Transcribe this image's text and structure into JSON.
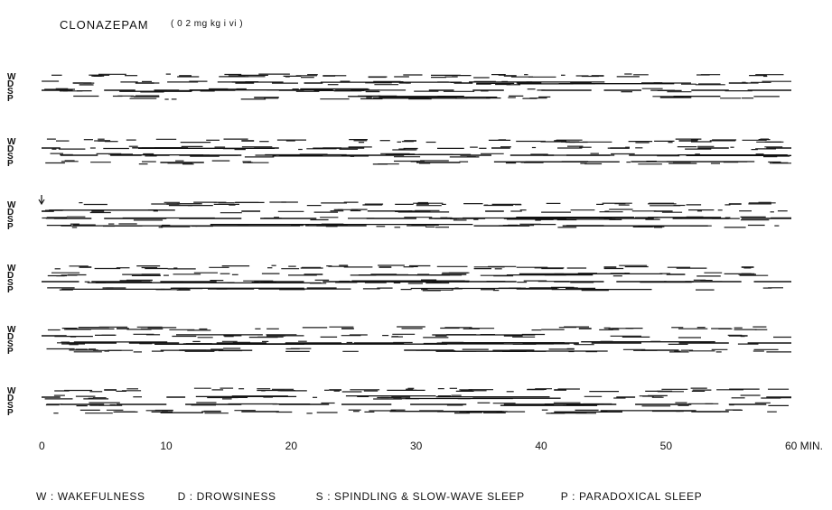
{
  "title": {
    "drug": "CLONAZEPAM",
    "dose": "( 0 2 mg kg i vi )"
  },
  "legend": {
    "w": "W : WAKEFULNESS",
    "d": "D : DROWSINESS",
    "s": "S : SPINDLING & SLOW-WAVE SLEEP",
    "p": "P : PARADOXICAL SLEEP"
  },
  "chart_data": {
    "type": "hypnogram",
    "xlabel": "MIN.",
    "x_range": [
      0,
      60
    ],
    "x_ticks": [
      0,
      10,
      20,
      30,
      40,
      50,
      60
    ],
    "x_tick_labels": [
      "0",
      "10",
      "20",
      "30",
      "40",
      "50",
      "60 MIN."
    ],
    "stage_labels": [
      "W",
      "D",
      "S",
      "P"
    ],
    "injection_marker": {
      "panel": 3,
      "minute": 0
    },
    "panels": [
      {
        "segments": [
          {
            "start": 0.0,
            "end": 2.5,
            "stage": "S"
          },
          {
            "start": 2.5,
            "end": 4.0,
            "stage": "D"
          },
          {
            "start": 4.0,
            "end": 5.0,
            "stage": "W"
          },
          {
            "start": 5.0,
            "end": 7.5,
            "stage": "S"
          },
          {
            "start": 7.5,
            "end": 9.0,
            "stage": "D"
          },
          {
            "start": 9.0,
            "end": 11.0,
            "stage": "S"
          },
          {
            "start": 11.0,
            "end": 12.0,
            "stage": "W"
          },
          {
            "start": 12.0,
            "end": 15.5,
            "stage": "S"
          },
          {
            "start": 15.5,
            "end": 17.0,
            "stage": "D"
          },
          {
            "start": 17.0,
            "end": 19.0,
            "stage": "P"
          },
          {
            "start": 19.0,
            "end": 21.0,
            "stage": "S"
          },
          {
            "start": 21.0,
            "end": 22.5,
            "stage": "D"
          },
          {
            "start": 22.5,
            "end": 23.5,
            "stage": "W"
          },
          {
            "start": 23.5,
            "end": 27.0,
            "stage": "S"
          },
          {
            "start": 27.0,
            "end": 31.0,
            "stage": "P"
          },
          {
            "start": 31.0,
            "end": 33.0,
            "stage": "S"
          },
          {
            "start": 33.0,
            "end": 34.5,
            "stage": "D"
          },
          {
            "start": 34.5,
            "end": 37.0,
            "stage": "S"
          },
          {
            "start": 37.0,
            "end": 38.0,
            "stage": "W"
          },
          {
            "start": 38.0,
            "end": 40.0,
            "stage": "D"
          },
          {
            "start": 40.0,
            "end": 44.0,
            "stage": "S"
          },
          {
            "start": 44.0,
            "end": 45.0,
            "stage": "W"
          },
          {
            "start": 45.0,
            "end": 48.0,
            "stage": "S"
          },
          {
            "start": 48.0,
            "end": 49.5,
            "stage": "D"
          },
          {
            "start": 49.5,
            "end": 52.0,
            "stage": "P"
          },
          {
            "start": 52.0,
            "end": 55.0,
            "stage": "S"
          },
          {
            "start": 55.0,
            "end": 56.5,
            "stage": "D"
          },
          {
            "start": 56.5,
            "end": 60.0,
            "stage": "S"
          }
        ]
      },
      {
        "segments": [
          {
            "start": 0.0,
            "end": 1.5,
            "stage": "D"
          },
          {
            "start": 1.5,
            "end": 4.5,
            "stage": "S"
          },
          {
            "start": 4.5,
            "end": 5.5,
            "stage": "W"
          },
          {
            "start": 5.5,
            "end": 8.0,
            "stage": "S"
          },
          {
            "start": 8.0,
            "end": 9.5,
            "stage": "D"
          },
          {
            "start": 9.5,
            "end": 13.0,
            "stage": "P"
          },
          {
            "start": 13.0,
            "end": 16.0,
            "stage": "S"
          },
          {
            "start": 16.0,
            "end": 17.0,
            "stage": "W"
          },
          {
            "start": 17.0,
            "end": 19.0,
            "stage": "D"
          },
          {
            "start": 19.0,
            "end": 22.5,
            "stage": "S"
          },
          {
            "start": 22.5,
            "end": 24.0,
            "stage": "D"
          },
          {
            "start": 24.0,
            "end": 29.0,
            "stage": "S"
          },
          {
            "start": 29.0,
            "end": 30.0,
            "stage": "W"
          },
          {
            "start": 30.0,
            "end": 33.5,
            "stage": "P"
          },
          {
            "start": 33.5,
            "end": 36.0,
            "stage": "S"
          },
          {
            "start": 36.0,
            "end": 37.5,
            "stage": "D"
          },
          {
            "start": 37.5,
            "end": 41.0,
            "stage": "S"
          },
          {
            "start": 41.0,
            "end": 42.0,
            "stage": "W"
          },
          {
            "start": 42.0,
            "end": 45.5,
            "stage": "S"
          },
          {
            "start": 45.5,
            "end": 47.0,
            "stage": "D"
          },
          {
            "start": 47.0,
            "end": 51.0,
            "stage": "S"
          },
          {
            "start": 51.0,
            "end": 52.5,
            "stage": "W"
          },
          {
            "start": 52.5,
            "end": 55.0,
            "stage": "D"
          },
          {
            "start": 55.0,
            "end": 58.0,
            "stage": "S"
          },
          {
            "start": 58.0,
            "end": 60.0,
            "stage": "D"
          }
        ]
      },
      {
        "segments": [
          {
            "start": 0.0,
            "end": 1.0,
            "stage": "D"
          },
          {
            "start": 1.0,
            "end": 4.0,
            "stage": "S"
          },
          {
            "start": 4.0,
            "end": 5.0,
            "stage": "D"
          },
          {
            "start": 5.0,
            "end": 10.0,
            "stage": "S"
          },
          {
            "start": 10.0,
            "end": 11.0,
            "stage": "W"
          },
          {
            "start": 11.0,
            "end": 16.0,
            "stage": "S"
          },
          {
            "start": 16.0,
            "end": 17.5,
            "stage": "D"
          },
          {
            "start": 17.5,
            "end": 22.0,
            "stage": "S"
          },
          {
            "start": 22.0,
            "end": 26.0,
            "stage": "P"
          },
          {
            "start": 26.0,
            "end": 30.0,
            "stage": "S"
          },
          {
            "start": 30.0,
            "end": 31.0,
            "stage": "W"
          },
          {
            "start": 31.0,
            "end": 35.5,
            "stage": "S"
          },
          {
            "start": 35.5,
            "end": 37.0,
            "stage": "D"
          },
          {
            "start": 37.0,
            "end": 42.0,
            "stage": "S"
          },
          {
            "start": 42.0,
            "end": 45.0,
            "stage": "P"
          },
          {
            "start": 45.0,
            "end": 49.0,
            "stage": "S"
          },
          {
            "start": 49.0,
            "end": 50.5,
            "stage": "D"
          },
          {
            "start": 50.5,
            "end": 55.0,
            "stage": "S"
          },
          {
            "start": 55.0,
            "end": 56.0,
            "stage": "W"
          },
          {
            "start": 56.0,
            "end": 60.0,
            "stage": "S"
          }
        ]
      },
      {
        "segments": [
          {
            "start": 0.0,
            "end": 3.0,
            "stage": "S"
          },
          {
            "start": 3.0,
            "end": 4.0,
            "stage": "W"
          },
          {
            "start": 4.0,
            "end": 8.0,
            "stage": "S"
          },
          {
            "start": 8.0,
            "end": 9.5,
            "stage": "D"
          },
          {
            "start": 9.5,
            "end": 14.0,
            "stage": "S"
          },
          {
            "start": 14.0,
            "end": 17.0,
            "stage": "P"
          },
          {
            "start": 17.0,
            "end": 21.0,
            "stage": "S"
          },
          {
            "start": 21.0,
            "end": 22.5,
            "stage": "D"
          },
          {
            "start": 22.5,
            "end": 27.0,
            "stage": "S"
          },
          {
            "start": 27.0,
            "end": 28.0,
            "stage": "W"
          },
          {
            "start": 28.0,
            "end": 32.0,
            "stage": "S"
          },
          {
            "start": 32.0,
            "end": 34.0,
            "stage": "D"
          },
          {
            "start": 34.0,
            "end": 38.0,
            "stage": "S"
          },
          {
            "start": 38.0,
            "end": 41.0,
            "stage": "P"
          },
          {
            "start": 41.0,
            "end": 45.0,
            "stage": "S"
          },
          {
            "start": 45.0,
            "end": 46.0,
            "stage": "W"
          },
          {
            "start": 46.0,
            "end": 50.0,
            "stage": "S"
          },
          {
            "start": 50.0,
            "end": 51.5,
            "stage": "D"
          },
          {
            "start": 51.5,
            "end": 56.0,
            "stage": "S"
          },
          {
            "start": 56.0,
            "end": 57.0,
            "stage": "W"
          },
          {
            "start": 57.0,
            "end": 60.0,
            "stage": "S"
          }
        ]
      },
      {
        "segments": [
          {
            "start": 0.0,
            "end": 2.0,
            "stage": "D"
          },
          {
            "start": 2.0,
            "end": 6.0,
            "stage": "S"
          },
          {
            "start": 6.0,
            "end": 7.0,
            "stage": "W"
          },
          {
            "start": 7.0,
            "end": 11.0,
            "stage": "S"
          },
          {
            "start": 11.0,
            "end": 14.0,
            "stage": "P"
          },
          {
            "start": 14.0,
            "end": 18.0,
            "stage": "S"
          },
          {
            "start": 18.0,
            "end": 19.5,
            "stage": "D"
          },
          {
            "start": 19.5,
            "end": 24.0,
            "stage": "S"
          },
          {
            "start": 24.0,
            "end": 25.0,
            "stage": "W"
          },
          {
            "start": 25.0,
            "end": 29.0,
            "stage": "S"
          },
          {
            "start": 29.0,
            "end": 33.0,
            "stage": "P"
          },
          {
            "start": 33.0,
            "end": 37.0,
            "stage": "S"
          },
          {
            "start": 37.0,
            "end": 38.5,
            "stage": "D"
          },
          {
            "start": 38.5,
            "end": 43.0,
            "stage": "S"
          },
          {
            "start": 43.0,
            "end": 44.0,
            "stage": "W"
          },
          {
            "start": 44.0,
            "end": 48.0,
            "stage": "S"
          },
          {
            "start": 48.0,
            "end": 51.0,
            "stage": "P"
          },
          {
            "start": 51.0,
            "end": 55.0,
            "stage": "S"
          },
          {
            "start": 55.0,
            "end": 56.5,
            "stage": "D"
          },
          {
            "start": 56.5,
            "end": 60.0,
            "stage": "S"
          }
        ]
      },
      {
        "segments": [
          {
            "start": 0.0,
            "end": 1.5,
            "stage": "D"
          },
          {
            "start": 1.5,
            "end": 5.0,
            "stage": "S"
          },
          {
            "start": 5.0,
            "end": 6.0,
            "stage": "W"
          },
          {
            "start": 6.0,
            "end": 10.0,
            "stage": "S"
          },
          {
            "start": 10.0,
            "end": 11.5,
            "stage": "D"
          },
          {
            "start": 11.5,
            "end": 16.0,
            "stage": "S"
          },
          {
            "start": 16.0,
            "end": 19.0,
            "stage": "P"
          },
          {
            "start": 19.0,
            "end": 23.0,
            "stage": "S"
          },
          {
            "start": 23.0,
            "end": 24.0,
            "stage": "W"
          },
          {
            "start": 24.0,
            "end": 28.0,
            "stage": "S"
          },
          {
            "start": 28.0,
            "end": 29.5,
            "stage": "D"
          },
          {
            "start": 29.5,
            "end": 34.0,
            "stage": "S"
          },
          {
            "start": 34.0,
            "end": 37.0,
            "stage": "P"
          },
          {
            "start": 37.0,
            "end": 41.0,
            "stage": "S"
          },
          {
            "start": 41.0,
            "end": 42.0,
            "stage": "W"
          },
          {
            "start": 42.0,
            "end": 46.0,
            "stage": "S"
          },
          {
            "start": 46.0,
            "end": 47.5,
            "stage": "D"
          },
          {
            "start": 47.5,
            "end": 52.0,
            "stage": "S"
          },
          {
            "start": 52.0,
            "end": 55.0,
            "stage": "P"
          },
          {
            "start": 55.0,
            "end": 58.0,
            "stage": "S"
          },
          {
            "start": 58.0,
            "end": 60.0,
            "stage": "D"
          }
        ]
      }
    ],
    "stage_lines": {
      "W": [
        [
          [
            [
              4,
              5
            ],
            [
              11,
              12
            ],
            [
              22.5,
              23.5
            ],
            [
              37,
              38
            ],
            [
              44,
              45
            ],
            [
              2,
              3
            ],
            [
              15,
              16.5
            ],
            [
              28,
              29.5
            ],
            [
              41,
              43
            ],
            [
              53,
              54
            ],
            [
              57,
              58
            ]
          ],
          [
            [
              4.5,
              5.5
            ],
            [
              16,
              17
            ],
            [
              29,
              30
            ],
            [
              41,
              42
            ],
            [
              51,
              52.5
            ],
            [
              7,
              8
            ],
            [
              13,
              14
            ],
            [
              34,
              35.5
            ],
            [
              46,
              47
            ],
            [
              55.5,
              56.5
            ]
          ],
          [
            [
              10,
              11
            ],
            [
              30,
              31
            ],
            [
              55,
              56
            ],
            [
              3,
              4
            ],
            [
              19,
              20.5
            ],
            [
              36,
              37
            ],
            [
              47,
              48
            ]
          ],
          [
            [
              3,
              4
            ],
            [
              27,
              28
            ],
            [
              45,
              46
            ],
            [
              56,
              57
            ],
            [
              10,
              11.5
            ],
            [
              18,
              19
            ],
            [
              33,
              34
            ],
            [
              50,
              51
            ]
          ],
          [
            [
              6,
              7
            ],
            [
              24,
              25
            ],
            [
              43,
              44
            ],
            [
              12,
              13
            ],
            [
              31,
              32
            ],
            [
              49,
              50
            ]
          ],
          [
            [
              5,
              6
            ],
            [
              23,
              24
            ],
            [
              41,
              42
            ],
            [
              14,
              15
            ],
            [
              33,
              34
            ],
            [
              50,
              51
            ]
          ]
        ]
      ]
    }
  }
}
